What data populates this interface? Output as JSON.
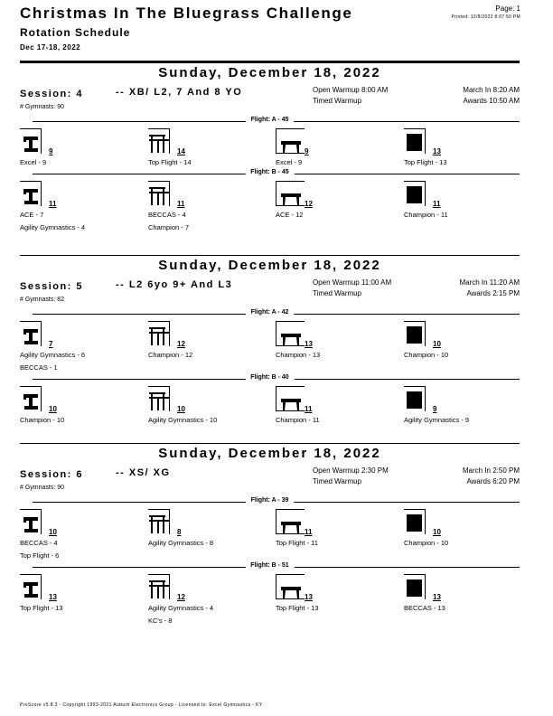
{
  "header": {
    "title": "Christmas In The Bluegrass Challenge",
    "subtitle": "Rotation Schedule",
    "dates": "Dec 17-18, 2022",
    "page": "Page: 1",
    "printed": "Printed: 12/8/2022 8:07:50 PM"
  },
  "events": [
    "vault-icon",
    "bars-icon",
    "beam-icon",
    "floor-icon"
  ],
  "sessions": [
    {
      "day": "Sunday, December 18, 2022",
      "session": "Session: 4",
      "desc": "-- XB/ L2, 7 And 8 YO",
      "open_warmup": "Open Warmup 8:00 AM",
      "timed_warmup": "Timed Warmup",
      "march_in": "March In 8:20 AM",
      "awards": "Awards 10:50 AM",
      "gymnasts": "# Gymnasts: 90",
      "flights": [
        {
          "label": "Flight: A - 45",
          "counts": [
            "9",
            "14",
            "9",
            "13"
          ],
          "names": [
            [
              "Excel - 9",
              "Top Flight - 14",
              "Excel - 9",
              "Top Flight - 13"
            ]
          ]
        },
        {
          "label": "Flight: B - 45",
          "counts": [
            "11",
            "11",
            "12",
            "11"
          ],
          "names": [
            [
              "ACE - 7",
              "BECCAS - 4",
              "ACE - 12",
              "Champion - 11"
            ],
            [
              "Agility Gymnastics - 4",
              "Champion - 7",
              "",
              ""
            ]
          ]
        }
      ]
    },
    {
      "day": "Sunday, December 18, 2022",
      "session": "Session: 5",
      "desc": "-- L2  6yo 9+  And L3",
      "open_warmup": "Open Warmup 11:00 AM",
      "timed_warmup": "Timed Warmup",
      "march_in": "March In 11:20 AM",
      "awards": "Awards 2:15 PM",
      "gymnasts": "# Gymnasts: 82",
      "flights": [
        {
          "label": "Flight: A - 42",
          "counts": [
            "7",
            "12",
            "13",
            "10"
          ],
          "names": [
            [
              "Agility Gymnastics - 6",
              "Champion - 12",
              "Champion - 13",
              "Champion - 10"
            ],
            [
              "BECCAS - 1",
              "",
              "",
              ""
            ]
          ]
        },
        {
          "label": "Flight: B - 40",
          "counts": [
            "10",
            "10",
            "11",
            "9"
          ],
          "names": [
            [
              "Champion - 10",
              "Agility Gymnastics - 10",
              "Champion - 11",
              "Agility Gymnastics - 9"
            ]
          ]
        }
      ]
    },
    {
      "day": "Sunday, December 18, 2022",
      "session": "Session: 6",
      "desc": "-- XS/ XG",
      "open_warmup": "Open Warmup 2:30 PM",
      "timed_warmup": "Timed Warmup",
      "march_in": "March In 2:50 PM",
      "awards": "Awards 6:20 PM",
      "gymnasts": "# Gymnasts: 90",
      "flights": [
        {
          "label": "Flight: A - 39",
          "counts": [
            "10",
            "8",
            "11",
            "10"
          ],
          "names": [
            [
              "BECCAS - 4",
              "Agility Gymnastics - 8",
              "Top Flight - 11",
              "Champion - 10"
            ],
            [
              "Top Flight - 6",
              "",
              "",
              ""
            ]
          ]
        },
        {
          "label": "Flight: B - 51",
          "counts": [
            "13",
            "12",
            "13",
            "13"
          ],
          "names": [
            [
              "Top Flight - 13",
              "Agility Gymnastics - 4",
              "Top Flight - 13",
              "BECCAS - 13"
            ],
            [
              "",
              "KC's - 8",
              "",
              ""
            ]
          ]
        }
      ]
    }
  ],
  "footer": "ProScore v5.8.3 - Copyright 1993-2021 Auburn Electronics Group - Licensed to: Excel Gymnastics - KY"
}
